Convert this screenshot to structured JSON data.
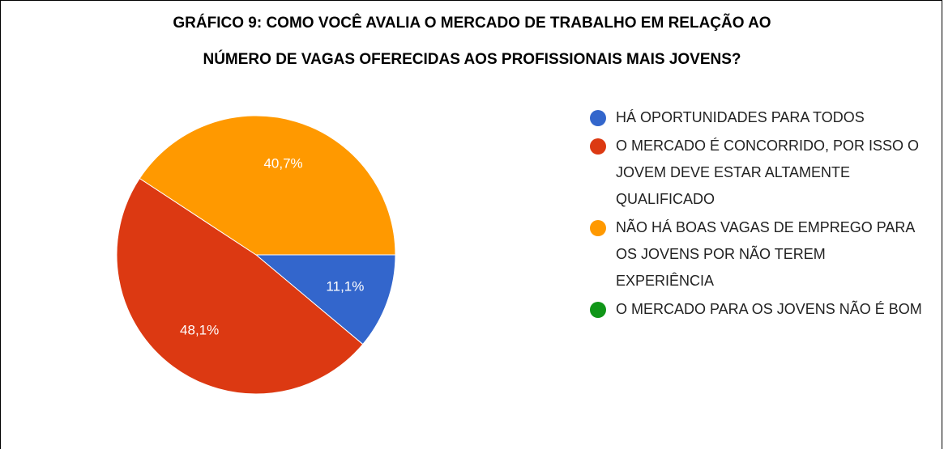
{
  "chart_data": {
    "type": "pie",
    "title": [
      "GRÁFICO 9: COMO VOCÊ AVALIA O MERCADO DE TRABALHO EM RELAÇÃO AO",
      "NÚMERO DE VAGAS OFERECIDAS AOS PROFISSIONAIS MAIS JOVENS?"
    ],
    "categories": [
      "HÁ OPORTUNIDADES PARA TODOS",
      "O MERCADO É CONCORRIDO, POR ISSO O JOVEM DEVE ESTAR ALTAMENTE QUALIFICADO",
      "NÃO HÁ BOAS VAGAS DE EMPREGO PARA OS JOVENS POR NÃO TEREM EXPERIÊNCIA",
      "O MERCADO PARA OS JOVENS NÃO É BOM"
    ],
    "values": [
      11.1,
      48.1,
      40.7,
      0
    ],
    "value_labels": [
      "11,1%",
      "48,1%",
      "40,7%",
      null
    ],
    "colors": [
      "#3366cc",
      "#dc3912",
      "#ff9900",
      "#109618"
    ],
    "legend": "right"
  }
}
